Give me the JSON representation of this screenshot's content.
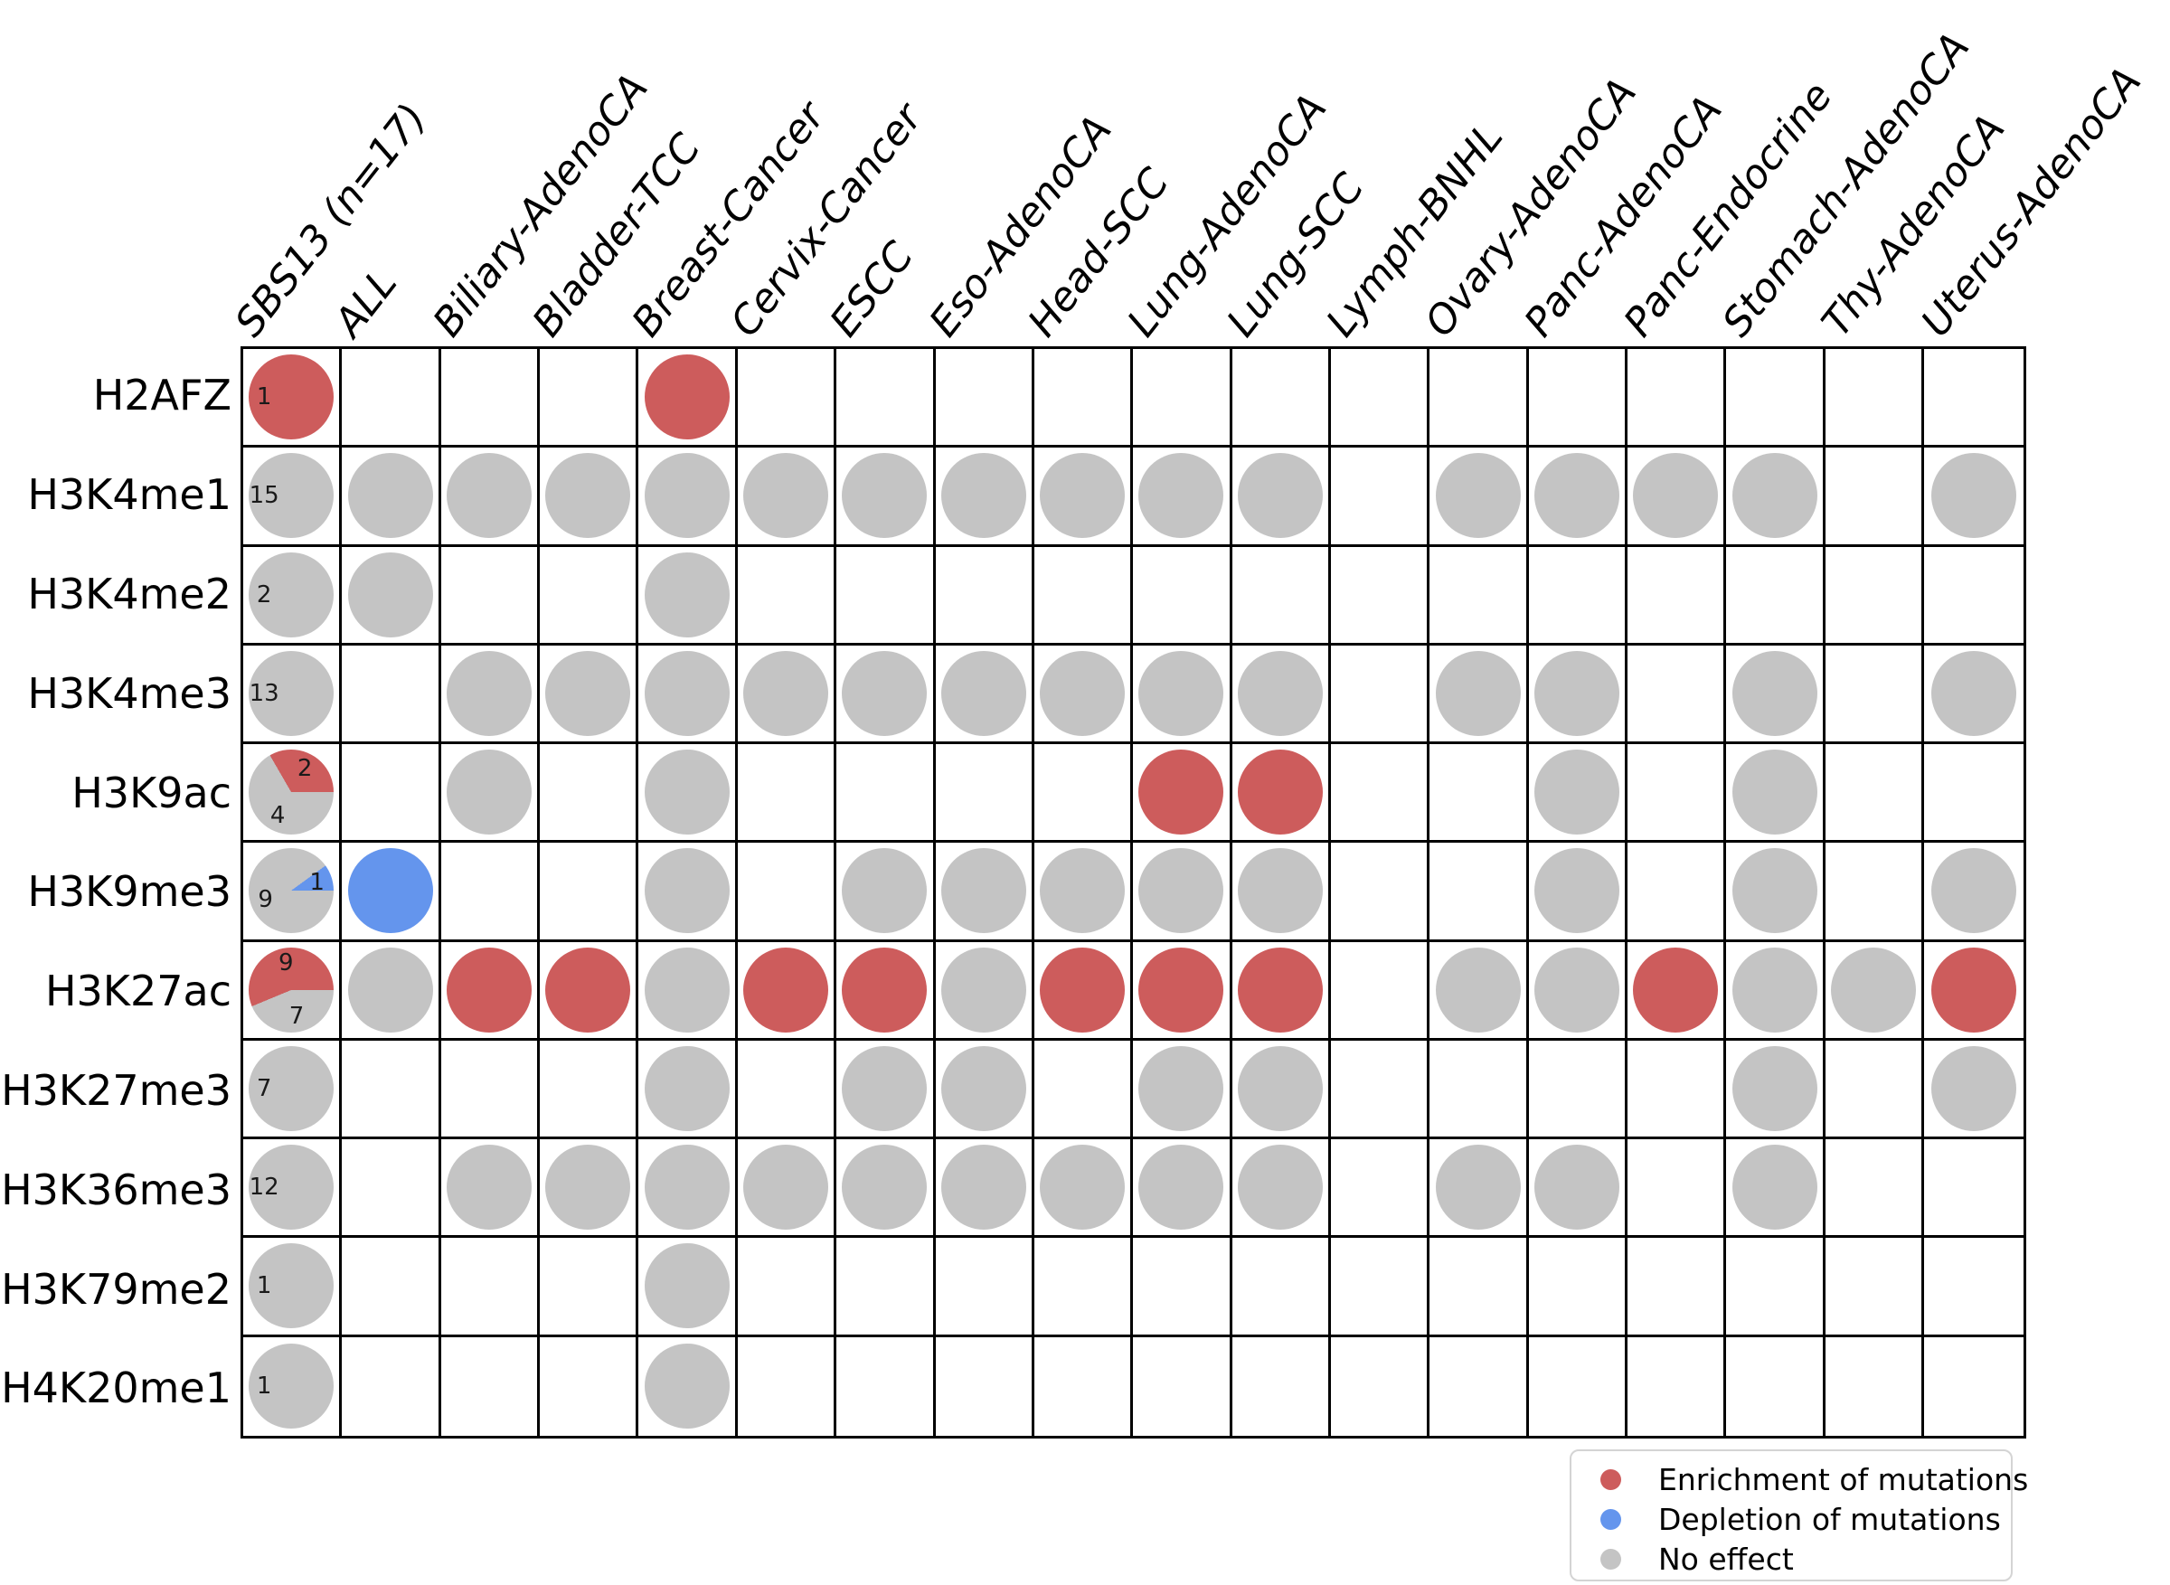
{
  "chart_data": {
    "type": "heatmap",
    "title": "",
    "description": "Matrix of histone marks vs cancer types showing enrichment/depletion/no effect of mutations; first column SBS13 (n=17) holds pie charts with sample counts",
    "rows": [
      "H2AFZ",
      "H3K4me1",
      "H3K4me2",
      "H3K4me3",
      "H3K9ac",
      "H3K9me3",
      "H3K27ac",
      "H3K27me3",
      "H3K36me3",
      "H3K79me2",
      "H4K20me1"
    ],
    "columns": [
      "SBS13 (n=17)",
      "ALL",
      "Biliary-AdenoCA",
      "Bladder-TCC",
      "Breast-Cancer",
      "Cervix-Cancer",
      "ESCC",
      "Eso-AdenoCA",
      "Head-SCC",
      "Lung-AdenoCA",
      "Lung-SCC",
      "Lymph-BNHL",
      "Ovary-AdenoCA",
      "Panc-AdenoCA",
      "Panc-Endocrine",
      "Stomach-AdenoCA",
      "Thy-AdenoCA",
      "Uterus-AdenoCA"
    ],
    "effect_names": {
      "R": "enrichment",
      "B": "depletion",
      "G": "no_effect"
    },
    "colors": {
      "R": "#CD5C5C",
      "B": "#6495ED",
      "G": "#C4C4C4"
    },
    "grid_line_color": "#000000",
    "cells": [
      [
        {
          "pie": [
            {
              "n": 1,
              "k": "R"
            }
          ]
        },
        null,
        null,
        null,
        "R",
        null,
        null,
        null,
        null,
        null,
        null,
        null,
        null,
        null,
        null,
        null,
        null,
        null
      ],
      [
        {
          "pie": [
            {
              "n": 15,
              "k": "G"
            }
          ]
        },
        "G",
        "G",
        "G",
        "G",
        "G",
        "G",
        "G",
        "G",
        "G",
        "G",
        null,
        "G",
        "G",
        "G",
        "G",
        null,
        "G"
      ],
      [
        {
          "pie": [
            {
              "n": 2,
              "k": "G"
            }
          ]
        },
        "G",
        null,
        null,
        "G",
        null,
        null,
        null,
        null,
        null,
        null,
        null,
        null,
        null,
        null,
        null,
        null,
        null
      ],
      [
        {
          "pie": [
            {
              "n": 13,
              "k": "G"
            }
          ]
        },
        null,
        "G",
        "G",
        "G",
        "G",
        "G",
        "G",
        "G",
        "G",
        "G",
        null,
        "G",
        "G",
        null,
        "G",
        null,
        "G"
      ],
      [
        {
          "pie": [
            {
              "n": 2,
              "k": "R"
            },
            {
              "n": 4,
              "k": "G"
            }
          ]
        },
        null,
        "G",
        null,
        "G",
        null,
        null,
        null,
        null,
        "R",
        "R",
        null,
        null,
        "G",
        null,
        "G",
        null,
        null
      ],
      [
        {
          "pie": [
            {
              "n": 1,
              "k": "B"
            },
            {
              "n": 9,
              "k": "G"
            }
          ]
        },
        "B",
        null,
        null,
        "G",
        null,
        "G",
        "G",
        "G",
        "G",
        "G",
        null,
        null,
        "G",
        null,
        "G",
        null,
        "G"
      ],
      [
        {
          "pie": [
            {
              "n": 9,
              "k": "R"
            },
            {
              "n": 7,
              "k": "G"
            }
          ]
        },
        "G",
        "R",
        "R",
        "G",
        "R",
        "R",
        "G",
        "R",
        "R",
        "R",
        null,
        "G",
        "G",
        "R",
        "G",
        "G",
        "R"
      ],
      [
        {
          "pie": [
            {
              "n": 7,
              "k": "G"
            }
          ]
        },
        null,
        null,
        null,
        "G",
        null,
        "G",
        "G",
        null,
        "G",
        "G",
        null,
        null,
        null,
        null,
        "G",
        null,
        "G"
      ],
      [
        {
          "pie": [
            {
              "n": 12,
              "k": "G"
            }
          ]
        },
        null,
        "G",
        "G",
        "G",
        "G",
        "G",
        "G",
        "G",
        "G",
        "G",
        null,
        "G",
        "G",
        null,
        "G",
        null,
        null
      ],
      [
        {
          "pie": [
            {
              "n": 1,
              "k": "G"
            }
          ]
        },
        null,
        null,
        null,
        "G",
        null,
        null,
        null,
        null,
        null,
        null,
        null,
        null,
        null,
        null,
        null,
        null,
        null
      ],
      [
        {
          "pie": [
            {
              "n": 1,
              "k": "G"
            }
          ]
        },
        null,
        null,
        null,
        "G",
        null,
        null,
        null,
        null,
        null,
        null,
        null,
        null,
        null,
        null,
        null,
        null,
        null
      ]
    ]
  },
  "legend": {
    "items": [
      {
        "key": "R",
        "label": "Enrichment of mutations"
      },
      {
        "key": "B",
        "label": "Depletion of mutations"
      },
      {
        "key": "G",
        "label": "No effect"
      }
    ]
  }
}
